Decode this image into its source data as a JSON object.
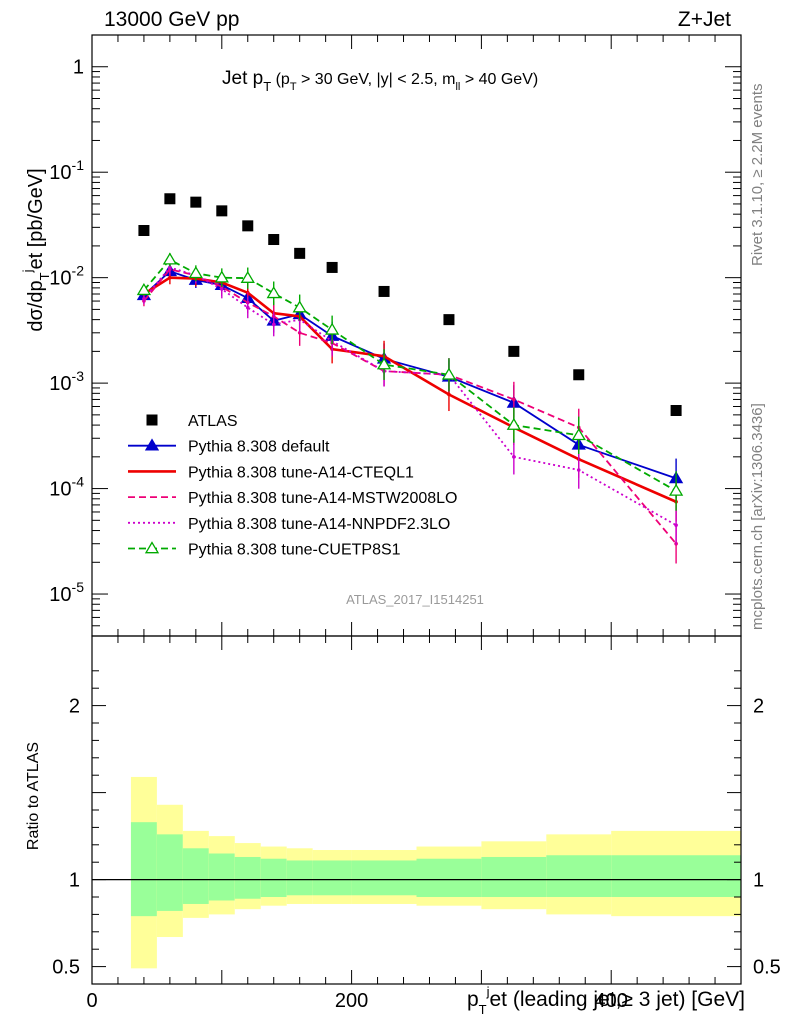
{
  "header": {
    "left": "13000 GeV pp",
    "right": "Z+Jet"
  },
  "side_labels": {
    "rivet": "Rivet 3.1.10, ≥ 2.2M events",
    "mcplots": "mcplots.cern.ch [arXiv:1306.3436]"
  },
  "watermark": "ATLAS_2017_I1514251",
  "chart_data": [
    {
      "type": "scatter",
      "panel": "main",
      "title": "Jet pT (pT > 30 GeV, |y| < 2.5, mll > 40 GeV)",
      "ylabel": "dσ/dpTjet [pb/GeV]",
      "y_scale": "log",
      "xlim": [
        0,
        500
      ],
      "ylim": [
        4e-06,
        2
      ],
      "y_ticks": [
        {
          "v": 1e-05,
          "exp": "-5"
        },
        {
          "v": 0.0001,
          "exp": "-4"
        },
        {
          "v": 0.001,
          "exp": "-3"
        },
        {
          "v": 0.01,
          "exp": "-2"
        },
        {
          "v": 0.1,
          "exp": "-1"
        },
        {
          "v": 1,
          "label": "1"
        }
      ],
      "legend_position": "bottom-left",
      "x": [
        40,
        60,
        80,
        100,
        120,
        140,
        160,
        185,
        225,
        275,
        325,
        375,
        450
      ],
      "series": [
        {
          "name": "ATLAS",
          "style": "markers",
          "color": "#000000",
          "values": [
            0.028,
            0.056,
            0.052,
            0.043,
            0.031,
            0.023,
            0.017,
            0.0125,
            0.0074,
            0.004,
            0.002,
            0.0012,
            0.00055
          ]
        },
        {
          "name": "Pythia 8.308 default",
          "style": "line-triangle",
          "color": "#0000cc",
          "values": [
            0.0068,
            0.0115,
            0.0095,
            0.0085,
            0.0064,
            0.0039,
            0.0045,
            0.0028,
            0.0017,
            0.00115,
            0.00065,
            0.00026,
            0.000125
          ]
        },
        {
          "name": "Pythia 8.308 tune-A14-CTEQL1",
          "style": "line",
          "color": "#ee0000",
          "values": [
            0.007,
            0.01,
            0.0098,
            0.009,
            0.0072,
            0.0046,
            0.0043,
            0.0021,
            0.0018,
            0.00078,
            0.00038,
            0.00019,
            7.5e-05
          ]
        },
        {
          "name": "Pythia 8.308 tune-A14-MSTW2008LO",
          "style": "dashed",
          "color": "#ee0077",
          "values": [
            0.006,
            0.012,
            0.0105,
            0.0082,
            0.0058,
            0.0043,
            0.003,
            0.0024,
            0.0013,
            0.0012,
            0.0007,
            0.00038,
            3e-05
          ]
        },
        {
          "name": "Pythia 8.308 tune-A14-NNPDF2.3LO",
          "style": "dotted",
          "color": "#cc00cc",
          "values": [
            0.0063,
            0.0125,
            0.0105,
            0.0078,
            0.0052,
            0.0036,
            0.004,
            0.0025,
            0.0013,
            0.0012,
            0.0002,
            0.00015,
            4.5e-05
          ]
        },
        {
          "name": "Pythia 8.308 tune-CUETP8S1",
          "style": "dashed-triangle-open",
          "color": "#00aa00",
          "values": [
            0.0076,
            0.0148,
            0.011,
            0.01,
            0.0099,
            0.0071,
            0.0052,
            0.0032,
            0.0015,
            0.0012,
            0.0004,
            0.00032,
            9.5e-05
          ]
        }
      ]
    },
    {
      "type": "area",
      "panel": "ratio",
      "ylabel": "Ratio to ATLAS",
      "xlabel": "pTjet (leading jet,≥ 3 jet) [GeV]",
      "xlim": [
        0,
        500
      ],
      "ylim": [
        0.4,
        2.4
      ],
      "x_ticks": [
        0,
        200,
        400
      ],
      "y_ticks": [
        0.5,
        1,
        2
      ],
      "bins": [
        {
          "lo": 30,
          "hi": 50,
          "inner": [
            0.79,
            1.33
          ],
          "outer": [
            0.49,
            1.59
          ]
        },
        {
          "lo": 50,
          "hi": 70,
          "inner": [
            0.82,
            1.26
          ],
          "outer": [
            0.67,
            1.43
          ]
        },
        {
          "lo": 70,
          "hi": 90,
          "inner": [
            0.86,
            1.18
          ],
          "outer": [
            0.78,
            1.28
          ]
        },
        {
          "lo": 90,
          "hi": 110,
          "inner": [
            0.88,
            1.15
          ],
          "outer": [
            0.8,
            1.25
          ]
        },
        {
          "lo": 110,
          "hi": 130,
          "inner": [
            0.89,
            1.13
          ],
          "outer": [
            0.83,
            1.21
          ]
        },
        {
          "lo": 130,
          "hi": 150,
          "inner": [
            0.9,
            1.12
          ],
          "outer": [
            0.85,
            1.19
          ]
        },
        {
          "lo": 150,
          "hi": 170,
          "inner": [
            0.91,
            1.11
          ],
          "outer": [
            0.86,
            1.18
          ]
        },
        {
          "lo": 170,
          "hi": 200,
          "inner": [
            0.91,
            1.11
          ],
          "outer": [
            0.86,
            1.17
          ]
        },
        {
          "lo": 200,
          "hi": 250,
          "inner": [
            0.91,
            1.11
          ],
          "outer": [
            0.86,
            1.17
          ]
        },
        {
          "lo": 250,
          "hi": 300,
          "inner": [
            0.9,
            1.12
          ],
          "outer": [
            0.85,
            1.19
          ]
        },
        {
          "lo": 300,
          "hi": 350,
          "inner": [
            0.9,
            1.13
          ],
          "outer": [
            0.83,
            1.22
          ]
        },
        {
          "lo": 350,
          "hi": 400,
          "inner": [
            0.9,
            1.14
          ],
          "outer": [
            0.8,
            1.26
          ]
        },
        {
          "lo": 400,
          "hi": 500,
          "inner": [
            0.9,
            1.14
          ],
          "outer": [
            0.79,
            1.28
          ]
        }
      ],
      "band_colors": {
        "inner": "#99ff99",
        "outer": "#ffff99"
      }
    }
  ]
}
